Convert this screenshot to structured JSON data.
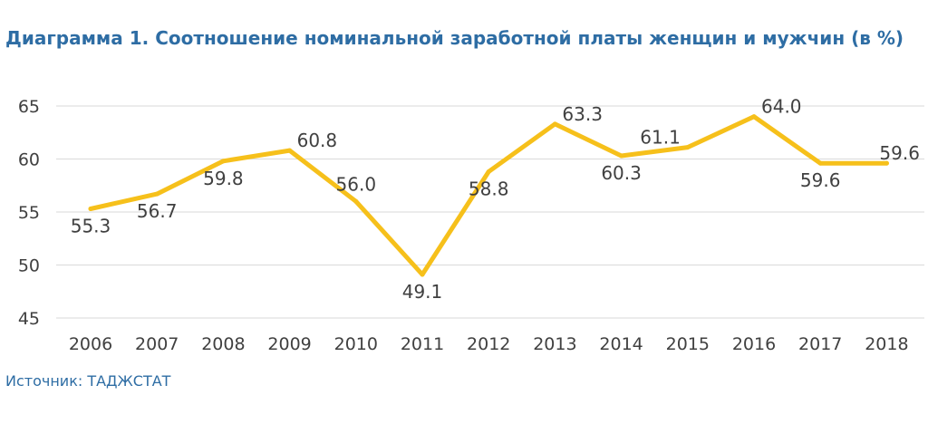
{
  "colors": {
    "title": "#2e6da4",
    "line": "#f6c01b",
    "grid": "#d9d9d9",
    "text": "#404040",
    "source": "#2e6da4"
  },
  "source": "Источник: ТАДЖСТАТ",
  "chart_data": {
    "type": "line",
    "title": "Диаграмма 1. Соотношение номинальной заработной платы женщин и мужчин (в %)",
    "categories": [
      "2006",
      "2007",
      "2008",
      "2009",
      "2010",
      "2011",
      "2012",
      "2013",
      "2014",
      "2015",
      "2016",
      "2017",
      "2018"
    ],
    "series": [
      {
        "values": [
          55.3,
          56.7,
          59.8,
          60.8,
          56.0,
          49.1,
          58.8,
          63.3,
          60.3,
          61.1,
          64.0,
          59.6,
          59.6
        ]
      }
    ],
    "data_labels": [
      "55.3",
      "56.7",
      "59.8",
      "60.8",
      "56.0",
      "49.1",
      "58.8",
      "63.3",
      "60.3",
      "61.1",
      "64.0",
      "59.6",
      "59.6"
    ],
    "y_ticks": [
      45,
      50,
      55,
      60,
      65
    ],
    "ylim": [
      45,
      65
    ],
    "grid": true,
    "legend": "none"
  }
}
